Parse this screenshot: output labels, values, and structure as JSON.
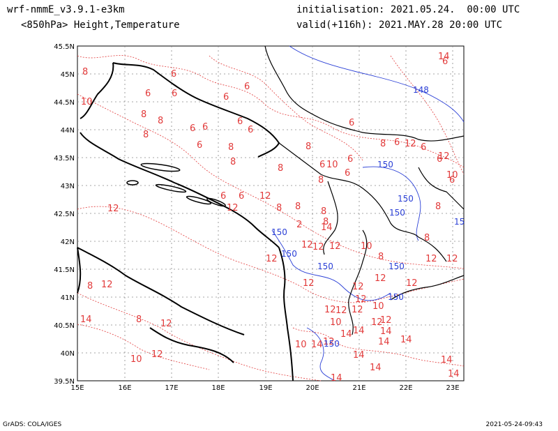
{
  "header": {
    "model": "wrf-nmmE_v3.9.1-e3km",
    "field": "<850hPa> Height,Temperature",
    "init": "initialisation: 2021.05.24.  00:00 UTC",
    "valid": "valid(+116h): 2021.MAY.28 20:00 UTC"
  },
  "footer": {
    "left": "GrADS: COLA/IGES",
    "right": "2021-05-24-09:43"
  },
  "map": {
    "lat_labels": [
      "45.5N",
      "45N",
      "44.5N",
      "44N",
      "43.5N",
      "43N",
      "42.5N",
      "42N",
      "41.5N",
      "41N",
      "40.5N",
      "40N",
      "39.5N"
    ],
    "lon_labels": [
      "15E",
      "16E",
      "17E",
      "18E",
      "19E",
      "20E",
      "21E",
      "22E",
      "23E"
    ],
    "grid": "dotted",
    "colors": {
      "temperature": "#e23a3a",
      "height": "#2a3fd6",
      "coast": "#000000"
    },
    "temperature_labels": [
      "8",
      "6",
      "6",
      "6",
      "6",
      "6",
      "10",
      "8",
      "6",
      "6",
      "8",
      "8",
      "6",
      "6",
      "8",
      "6",
      "10",
      "6",
      "8",
      "6",
      "6",
      "6",
      "6",
      "6",
      "6",
      "6",
      "8",
      "8",
      "8",
      "8",
      "6",
      "6",
      "6",
      "12",
      "12",
      "12",
      "12",
      "12",
      "10",
      "8",
      "8",
      "8",
      "8",
      "8",
      "12",
      "12",
      "12",
      "12",
      "8",
      "12",
      "8",
      "12",
      "10",
      "12",
      "12",
      "12",
      "12",
      "12",
      "12",
      "10",
      "12",
      "10",
      "12",
      "10",
      "14",
      "14",
      "14",
      "14",
      "14",
      "14",
      "14",
      "14",
      "14",
      "14",
      "14",
      "14",
      "12",
      "12",
      "12",
      "12",
      "2",
      "14",
      "14",
      "12",
      "12",
      "10",
      "8",
      "8",
      "6",
      "6",
      "6",
      "8",
      "8",
      "12"
    ],
    "height_labels": [
      "148",
      "150",
      "150",
      "150",
      "150",
      "150",
      "150",
      "150",
      "150",
      "150",
      "15"
    ]
  }
}
